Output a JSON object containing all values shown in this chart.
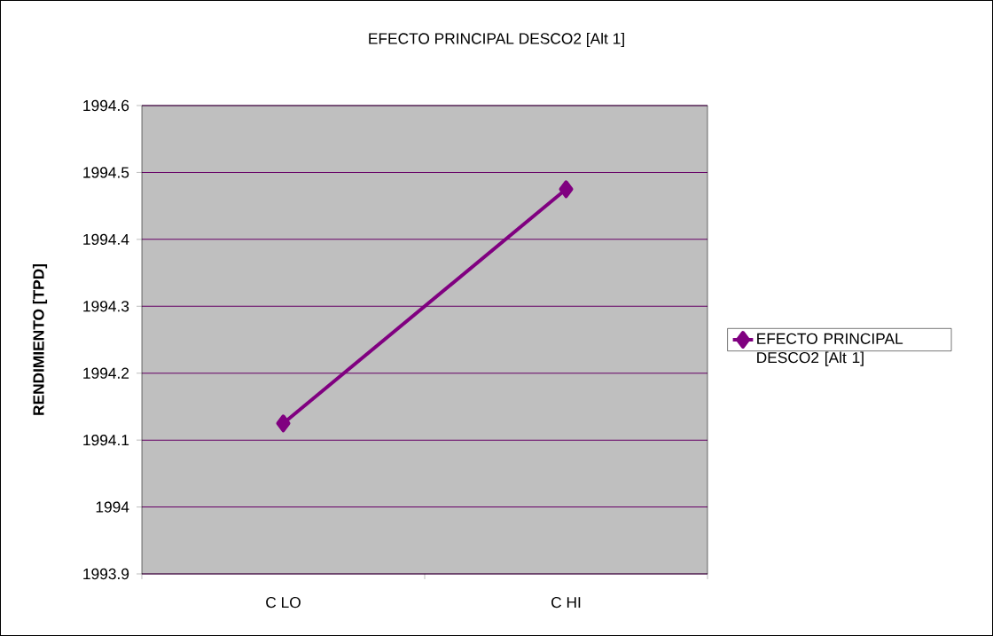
{
  "chart_data": {
    "type": "line",
    "title": "EFECTO PRINCIPAL DESCO2 [Alt 1]",
    "ylabel": "RENDIMIENTO [TPD]",
    "categories": [
      "C LO",
      "C HI"
    ],
    "series": [
      {
        "name": "EFECTO PRINCIPAL DESCO2 [Alt 1]",
        "color": "#800080",
        "values": [
          1994.125,
          1994.475
        ]
      }
    ],
    "ylim": [
      1993.9,
      1994.6
    ],
    "yticks": [
      1993.9,
      1994,
      1994.1,
      1994.2,
      1994.3,
      1994.4,
      1994.5,
      1994.6
    ],
    "grid": "y",
    "legend": "right",
    "marker": "diamond",
    "line_style": "solid"
  }
}
